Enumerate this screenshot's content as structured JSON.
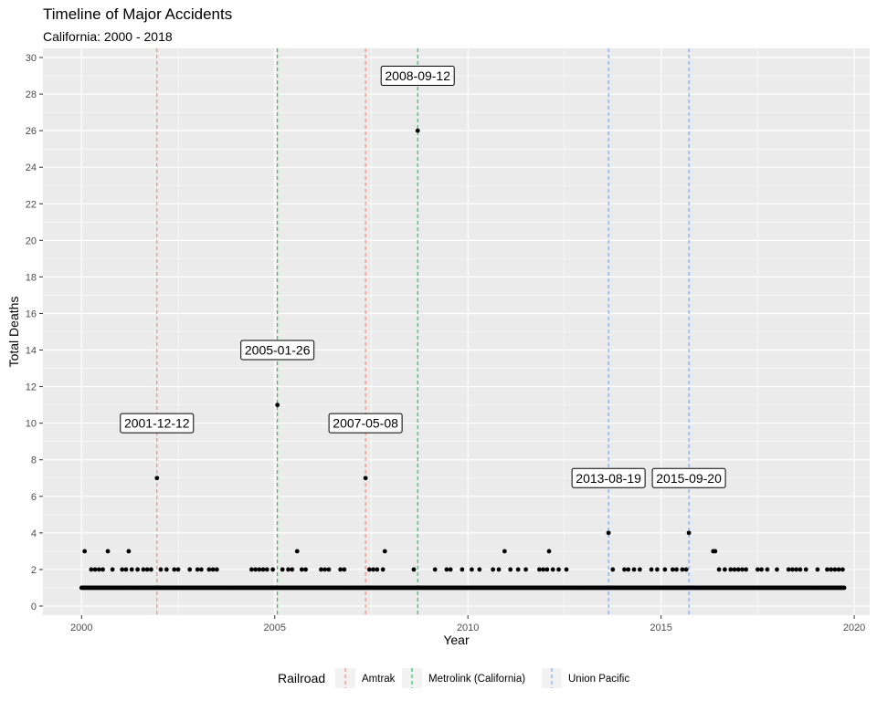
{
  "chart_data": {
    "type": "scatter",
    "title": "Timeline of Major Accidents",
    "subtitle": "California: 2000 - 2018",
    "xlabel": "Year",
    "ylabel": "Total Deaths",
    "xlim": [
      1999.0,
      2020.4
    ],
    "ylim": [
      -0.5,
      30.5
    ],
    "x_ticks": [
      2000,
      2005,
      2010,
      2015,
      2020
    ],
    "y_ticks": [
      0,
      2,
      4,
      6,
      8,
      10,
      12,
      14,
      16,
      18,
      20,
      22,
      24,
      26,
      28,
      30
    ],
    "grid": true,
    "legend": {
      "title": "Railroad",
      "position": "bottom",
      "entries": [
        {
          "name": "Amtrak",
          "color": "#F8766D"
        },
        {
          "name": "Metrolink (California)",
          "color": "#00BA38"
        },
        {
          "name": "Union Pacific",
          "color": "#619CFF"
        }
      ]
    },
    "vlines": [
      {
        "x": 2001.95,
        "railroad": "Amtrak",
        "color": "#F8766D"
      },
      {
        "x": 2007.35,
        "railroad": "Amtrak",
        "color": "#F8766D"
      },
      {
        "x": 2005.07,
        "railroad": "Metrolink (California)",
        "color": "#00BA38"
      },
      {
        "x": 2008.7,
        "railroad": "Metrolink (California)",
        "color": "#00BA38"
      },
      {
        "x": 2013.64,
        "railroad": "Union Pacific",
        "color": "#619CFF"
      },
      {
        "x": 2015.72,
        "railroad": "Union Pacific",
        "color": "#619CFF"
      }
    ],
    "annotations": [
      {
        "text": "2001-12-12",
        "x": 2001.95,
        "y": 10
      },
      {
        "text": "2005-01-26",
        "x": 2005.07,
        "y": 14
      },
      {
        "text": "2007-05-08",
        "x": 2007.35,
        "y": 10
      },
      {
        "text": "2008-09-12",
        "x": 2008.7,
        "y": 29
      },
      {
        "text": "2013-08-19",
        "x": 2013.64,
        "y": 7
      },
      {
        "text": "2015-09-20",
        "x": 2015.72,
        "y": 7
      }
    ],
    "baseline_series": {
      "y": 1,
      "x_start": 2000.0,
      "x_end": 2019.75
    },
    "points": [
      {
        "x": 2001.95,
        "y": 7
      },
      {
        "x": 2005.07,
        "y": 11
      },
      {
        "x": 2007.35,
        "y": 7
      },
      {
        "x": 2008.7,
        "y": 26
      },
      {
        "x": 2013.64,
        "y": 4
      },
      {
        "x": 2015.72,
        "y": 4
      },
      {
        "x": 2000.08,
        "y": 3
      },
      {
        "x": 2000.68,
        "y": 3
      },
      {
        "x": 2001.22,
        "y": 3
      },
      {
        "x": 2005.58,
        "y": 3
      },
      {
        "x": 2007.85,
        "y": 3
      },
      {
        "x": 2010.95,
        "y": 3
      },
      {
        "x": 2012.1,
        "y": 3
      },
      {
        "x": 2016.35,
        "y": 3
      },
      {
        "x": 2016.4,
        "y": 3
      },
      {
        "x": 2000.25,
        "y": 2
      },
      {
        "x": 2000.35,
        "y": 2
      },
      {
        "x": 2000.45,
        "y": 2
      },
      {
        "x": 2000.55,
        "y": 2
      },
      {
        "x": 2000.8,
        "y": 2
      },
      {
        "x": 2001.05,
        "y": 2
      },
      {
        "x": 2001.15,
        "y": 2
      },
      {
        "x": 2001.3,
        "y": 2
      },
      {
        "x": 2001.45,
        "y": 2
      },
      {
        "x": 2001.6,
        "y": 2
      },
      {
        "x": 2001.7,
        "y": 2
      },
      {
        "x": 2001.8,
        "y": 2
      },
      {
        "x": 2002.05,
        "y": 2
      },
      {
        "x": 2002.2,
        "y": 2
      },
      {
        "x": 2002.4,
        "y": 2
      },
      {
        "x": 2002.5,
        "y": 2
      },
      {
        "x": 2002.8,
        "y": 2
      },
      {
        "x": 2003.0,
        "y": 2
      },
      {
        "x": 2003.1,
        "y": 2
      },
      {
        "x": 2003.3,
        "y": 2
      },
      {
        "x": 2003.4,
        "y": 2
      },
      {
        "x": 2003.5,
        "y": 2
      },
      {
        "x": 2004.4,
        "y": 2
      },
      {
        "x": 2004.5,
        "y": 2
      },
      {
        "x": 2004.6,
        "y": 2
      },
      {
        "x": 2004.7,
        "y": 2
      },
      {
        "x": 2004.8,
        "y": 2
      },
      {
        "x": 2004.95,
        "y": 2
      },
      {
        "x": 2005.2,
        "y": 2
      },
      {
        "x": 2005.35,
        "y": 2
      },
      {
        "x": 2005.45,
        "y": 2
      },
      {
        "x": 2005.7,
        "y": 2
      },
      {
        "x": 2005.8,
        "y": 2
      },
      {
        "x": 2006.2,
        "y": 2
      },
      {
        "x": 2006.3,
        "y": 2
      },
      {
        "x": 2006.4,
        "y": 2
      },
      {
        "x": 2006.7,
        "y": 2
      },
      {
        "x": 2006.8,
        "y": 2
      },
      {
        "x": 2007.45,
        "y": 2
      },
      {
        "x": 2007.55,
        "y": 2
      },
      {
        "x": 2007.65,
        "y": 2
      },
      {
        "x": 2007.8,
        "y": 2
      },
      {
        "x": 2008.6,
        "y": 2
      },
      {
        "x": 2009.15,
        "y": 2
      },
      {
        "x": 2009.45,
        "y": 2
      },
      {
        "x": 2009.55,
        "y": 2
      },
      {
        "x": 2009.85,
        "y": 2
      },
      {
        "x": 2010.1,
        "y": 2
      },
      {
        "x": 2010.3,
        "y": 2
      },
      {
        "x": 2010.65,
        "y": 2
      },
      {
        "x": 2010.8,
        "y": 2
      },
      {
        "x": 2011.1,
        "y": 2
      },
      {
        "x": 2011.3,
        "y": 2
      },
      {
        "x": 2011.5,
        "y": 2
      },
      {
        "x": 2011.85,
        "y": 2
      },
      {
        "x": 2011.95,
        "y": 2
      },
      {
        "x": 2012.05,
        "y": 2
      },
      {
        "x": 2012.2,
        "y": 2
      },
      {
        "x": 2012.35,
        "y": 2
      },
      {
        "x": 2012.55,
        "y": 2
      },
      {
        "x": 2013.75,
        "y": 2
      },
      {
        "x": 2014.05,
        "y": 2
      },
      {
        "x": 2014.15,
        "y": 2
      },
      {
        "x": 2014.3,
        "y": 2
      },
      {
        "x": 2014.45,
        "y": 2
      },
      {
        "x": 2014.75,
        "y": 2
      },
      {
        "x": 2014.9,
        "y": 2
      },
      {
        "x": 2015.1,
        "y": 2
      },
      {
        "x": 2015.3,
        "y": 2
      },
      {
        "x": 2015.4,
        "y": 2
      },
      {
        "x": 2015.55,
        "y": 2
      },
      {
        "x": 2015.65,
        "y": 2
      },
      {
        "x": 2016.5,
        "y": 2
      },
      {
        "x": 2016.65,
        "y": 2
      },
      {
        "x": 2016.8,
        "y": 2
      },
      {
        "x": 2016.9,
        "y": 2
      },
      {
        "x": 2017.0,
        "y": 2
      },
      {
        "x": 2017.1,
        "y": 2
      },
      {
        "x": 2017.2,
        "y": 2
      },
      {
        "x": 2017.5,
        "y": 2
      },
      {
        "x": 2017.6,
        "y": 2
      },
      {
        "x": 2017.75,
        "y": 2
      },
      {
        "x": 2018.0,
        "y": 2
      },
      {
        "x": 2018.3,
        "y": 2
      },
      {
        "x": 2018.4,
        "y": 2
      },
      {
        "x": 2018.5,
        "y": 2
      },
      {
        "x": 2018.6,
        "y": 2
      },
      {
        "x": 2018.75,
        "y": 2
      },
      {
        "x": 2019.05,
        "y": 2
      },
      {
        "x": 2019.3,
        "y": 2
      },
      {
        "x": 2019.4,
        "y": 2
      },
      {
        "x": 2019.5,
        "y": 2
      },
      {
        "x": 2019.6,
        "y": 2
      },
      {
        "x": 2019.7,
        "y": 2
      }
    ]
  }
}
